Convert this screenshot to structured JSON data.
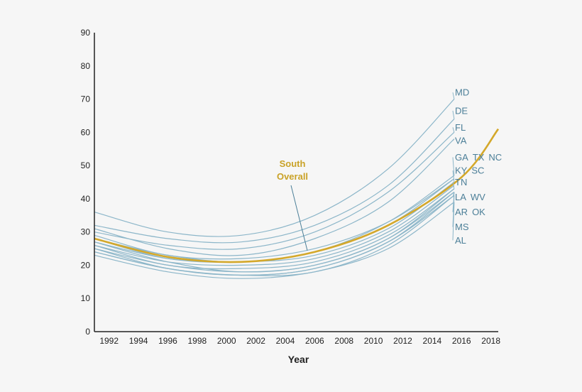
{
  "chart_data": {
    "type": "line",
    "xlabel": "Year",
    "ylabel": "",
    "xlim": [
      1991,
      2018.5
    ],
    "ylim": [
      0,
      90
    ],
    "y_ticks": [
      0,
      10,
      20,
      30,
      40,
      50,
      60,
      70,
      80,
      90
    ],
    "x_ticks": [
      "1992",
      "1994",
      "1996",
      "1998",
      "2000",
      "2002",
      "2004",
      "2006",
      "2008",
      "2010",
      "2012",
      "2014",
      "2016",
      "2018"
    ],
    "grid": false,
    "colors": {
      "state": "#8cb6c9",
      "state_label": "#4c7f98",
      "highlight": "#d4a82a",
      "highlight_label": "#c9a227",
      "axis": "#222222"
    },
    "x": [
      1991,
      1996,
      2001,
      2006,
      2011,
      2015.5
    ],
    "series": [
      {
        "name": "MD",
        "values": [
          36,
          30,
          29,
          35,
          49,
          70
        ]
      },
      {
        "name": "DE",
        "values": [
          32,
          28,
          27,
          32,
          44,
          64
        ]
      },
      {
        "name": "FL",
        "values": [
          30,
          26,
          25,
          30,
          42,
          60
        ]
      },
      {
        "name": "VA",
        "values": [
          31,
          25,
          23,
          28,
          39,
          58
        ]
      },
      {
        "name": "GA",
        "values": [
          28,
          23,
          21,
          24,
          33,
          47
        ]
      },
      {
        "name": "TX",
        "values": [
          29,
          23,
          22,
          25,
          33,
          46
        ]
      },
      {
        "name": "NC",
        "values": [
          28,
          22,
          21,
          24,
          32,
          46
        ]
      },
      {
        "name": "KY",
        "values": [
          27,
          22,
          21,
          23,
          31,
          45
        ]
      },
      {
        "name": "SC",
        "values": [
          26,
          21,
          20,
          22,
          30,
          44
        ]
      },
      {
        "name": "TN",
        "values": [
          26,
          20,
          19,
          21,
          29,
          43
        ]
      },
      {
        "name": "LA",
        "values": [
          25,
          20,
          18,
          20,
          28,
          42
        ]
      },
      {
        "name": "WV",
        "values": [
          27,
          21,
          18,
          20,
          28,
          43
        ]
      },
      {
        "name": "AR",
        "values": [
          24,
          19,
          17,
          19,
          27,
          42
        ]
      },
      {
        "name": "OK",
        "values": [
          25,
          19,
          17,
          19,
          27,
          41
        ]
      },
      {
        "name": "MS",
        "values": [
          24,
          19,
          17,
          18,
          26,
          41
        ]
      },
      {
        "name": "AL",
        "values": [
          23,
          18,
          16,
          18,
          25,
          39
        ]
      }
    ],
    "highlight_series": {
      "name": "South Overall",
      "label_lines": [
        "South",
        "Overall"
      ],
      "x": [
        1991,
        1996,
        2001,
        2006,
        2011,
        2016,
        2018.5
      ],
      "values": [
        28,
        22.5,
        21,
        24,
        32,
        46.5,
        61
      ]
    },
    "labels_rows": [
      {
        "names": [
          "MD"
        ],
        "y": 72
      },
      {
        "names": [
          "DE"
        ],
        "y": 66.5
      },
      {
        "names": [
          "FL"
        ],
        "y": 61.5
      },
      {
        "names": [
          "VA"
        ],
        "y": 57.5
      },
      {
        "names": [
          "GA",
          "TX",
          "NC"
        ],
        "y": 52.5
      },
      {
        "names": [
          "KY",
          "SC"
        ],
        "y": 48.5
      },
      {
        "names": [
          "TN"
        ],
        "y": 45
      },
      {
        "names": [
          "LA",
          "WV"
        ],
        "y": 40.5
      },
      {
        "names": [
          "AR",
          "OK"
        ],
        "y": 36
      },
      {
        "names": [
          "MS"
        ],
        "y": 31.5
      },
      {
        "names": [
          "AL"
        ],
        "y": 27.5
      }
    ]
  }
}
